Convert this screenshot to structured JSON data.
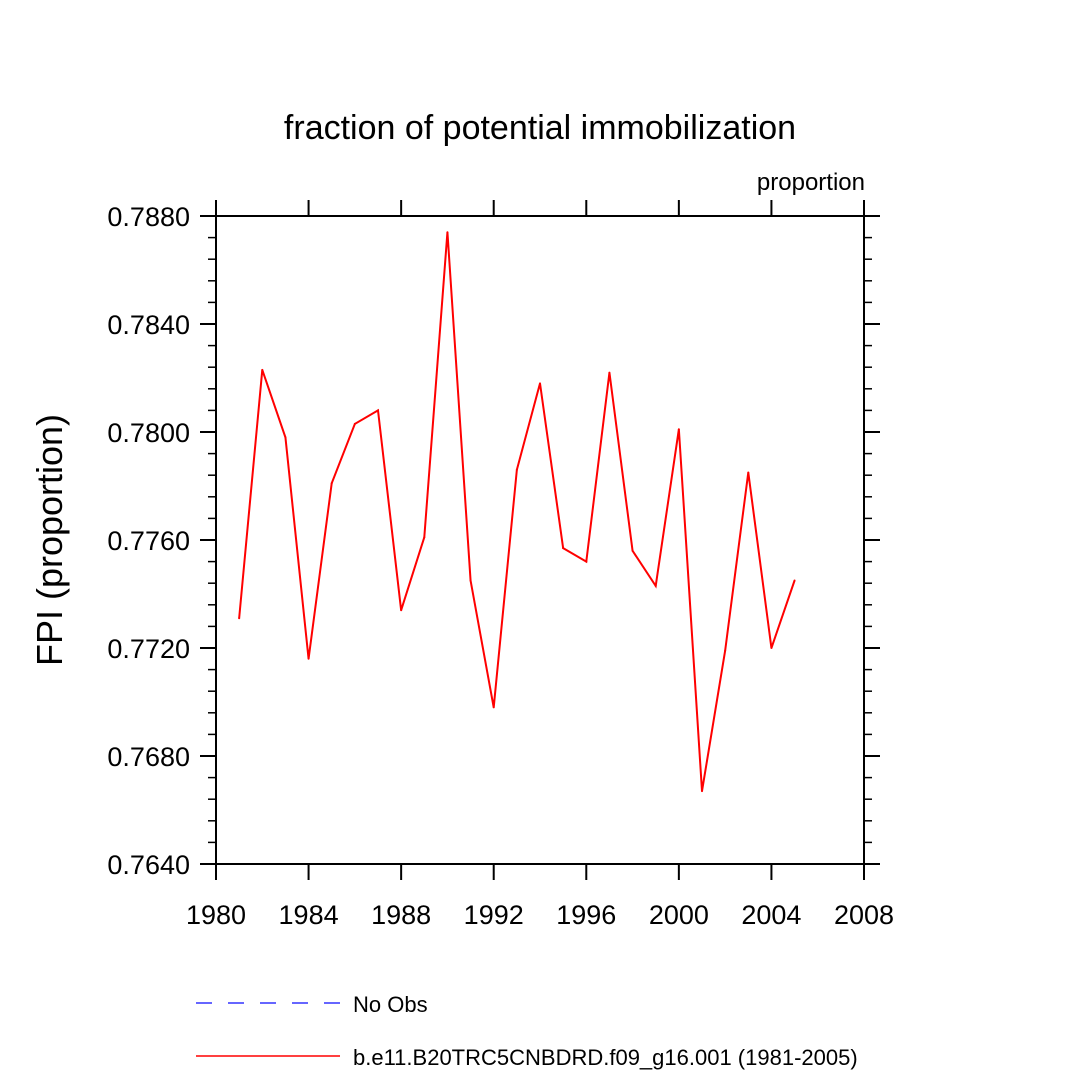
{
  "chart_data": {
    "type": "line",
    "title": "fraction of potential immobilization",
    "subtitle": "proportion",
    "xlabel": "",
    "ylabel": "FPI  (proportion)",
    "xlim": [
      1980,
      2008
    ],
    "ylim": [
      0.764,
      0.788
    ],
    "x_ticks": [
      1980,
      1984,
      1988,
      1992,
      1996,
      2000,
      2004,
      2008
    ],
    "x_tick_labels": [
      "1980",
      "1984",
      "1988",
      "1992",
      "1996",
      "2000",
      "2004",
      "2008"
    ],
    "y_ticks": [
      0.764,
      0.768,
      0.772,
      0.776,
      0.78,
      0.784,
      0.788
    ],
    "y_tick_labels": [
      "0.7640",
      "0.7680",
      "0.7720",
      "0.7760",
      "0.7800",
      "0.7840",
      "0.7880"
    ],
    "grid": false,
    "legend_position": "bottom",
    "series": [
      {
        "name": "b.e11.B20TRC5CNBDRD.f09_g16.001 (1981-2005)",
        "color": "#ff0000",
        "style": "solid",
        "x": [
          1981,
          1982,
          1983,
          1984,
          1985,
          1986,
          1987,
          1988,
          1989,
          1990,
          1991,
          1992,
          1993,
          1994,
          1995,
          1996,
          1997,
          1998,
          1999,
          2000,
          2001,
          2002,
          2003,
          2004,
          2005
        ],
        "values": [
          0.7731,
          0.7823,
          0.7798,
          0.7716,
          0.7781,
          0.7803,
          0.7808,
          0.7734,
          0.7761,
          0.7874,
          0.7745,
          0.7698,
          0.7786,
          0.7818,
          0.7757,
          0.7752,
          0.7822,
          0.7756,
          0.7743,
          0.7801,
          0.7667,
          0.7719,
          0.7785,
          0.772,
          0.7745
        ]
      }
    ],
    "legend": [
      {
        "label": "No Obs",
        "color": "#3333ff",
        "style": "dashed"
      },
      {
        "label": "b.e11.B20TRC5CNBDRD.f09_g16.001 (1981-2005)",
        "color": "#ff0000",
        "style": "solid"
      }
    ]
  }
}
